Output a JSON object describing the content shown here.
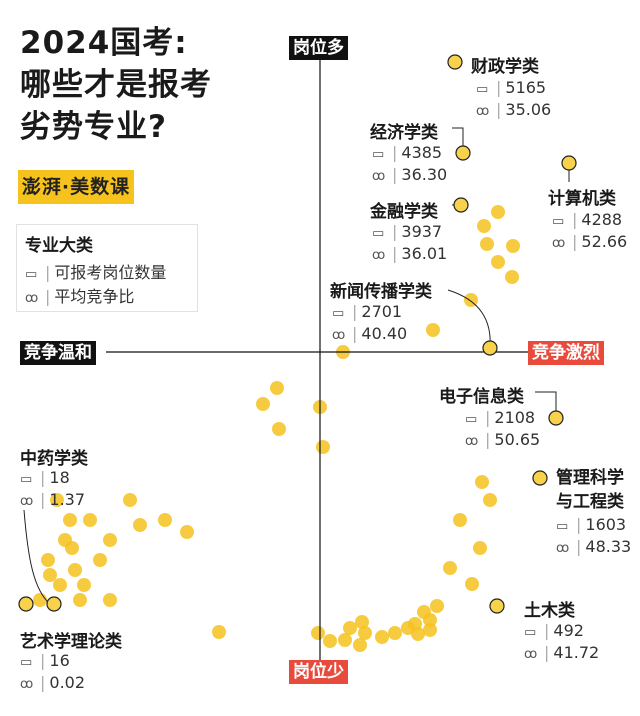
{
  "title_lines": [
    "2024国考:",
    "哪些才是报考",
    "劣势专业?"
  ],
  "logo_text": "澎湃·美数课",
  "legend": {
    "title": "专业大类",
    "rows": [
      {
        "icon": "monitor-icon",
        "text": "可报考岗位数量"
      },
      {
        "icon": "people-icon",
        "text": "平均竞争比"
      }
    ]
  },
  "axis_labels": {
    "top": "岗位多",
    "bottom": "岗位少",
    "left": "竞争温和",
    "right": "竞争激烈"
  },
  "colors": {
    "point": "#f6c21e",
    "highlight_point": "#f7d24a",
    "accent_red": "#e84a3c",
    "axis": "#111111"
  },
  "chart_data": {
    "type": "scatter",
    "title": "2024国考:哪些才是报考劣势专业?",
    "x_label": "平均竞争比",
    "y_label": "可报考岗位数量",
    "labeled_points": [
      {
        "name": "财政学类",
        "positions": 5165,
        "competition": 35.06
      },
      {
        "name": "经济学类",
        "positions": 4385,
        "competition": 36.3
      },
      {
        "name": "计算机类",
        "positions": 4288,
        "competition": 52.66
      },
      {
        "name": "金融学类",
        "positions": 3937,
        "competition": 36.01
      },
      {
        "name": "新闻传播学类",
        "positions": 2701,
        "competition": 40.4
      },
      {
        "name": "电子信息类",
        "positions": 2108,
        "competition": 50.65
      },
      {
        "name": "管理科学与工程类",
        "positions": 1603,
        "competition": 48.33
      },
      {
        "name": "中药学类",
        "positions": 18,
        "competition": 1.37
      },
      {
        "name": "艺术学理论类",
        "positions": 16,
        "competition": 0.02
      },
      {
        "name": "土木类",
        "positions": 492,
        "competition": 41.72
      }
    ]
  }
}
